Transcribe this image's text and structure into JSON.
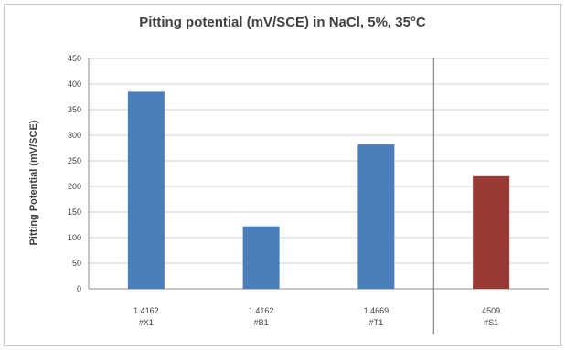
{
  "chart_data": {
    "type": "bar",
    "title": "Pitting potential (mV/SCE) in NaCl, 5%, 35°C",
    "ylabel": "Pitting Potential (mV/SCE)",
    "xlabel": "",
    "ylim": [
      0,
      450
    ],
    "yticks": [
      0,
      50,
      100,
      150,
      200,
      250,
      300,
      350,
      400,
      450
    ],
    "grid": true,
    "categories": [
      [
        "1.4162",
        "#X1"
      ],
      [
        "1.4162",
        "#B1"
      ],
      [
        "1.4669",
        "#T1"
      ],
      [
        "4509",
        "#S1"
      ]
    ],
    "values": [
      385,
      122,
      282,
      220
    ],
    "colors": [
      "#4a7ebb",
      "#4a7ebb",
      "#4a7ebb",
      "#9a3a34"
    ],
    "separator_after_category": 3
  }
}
